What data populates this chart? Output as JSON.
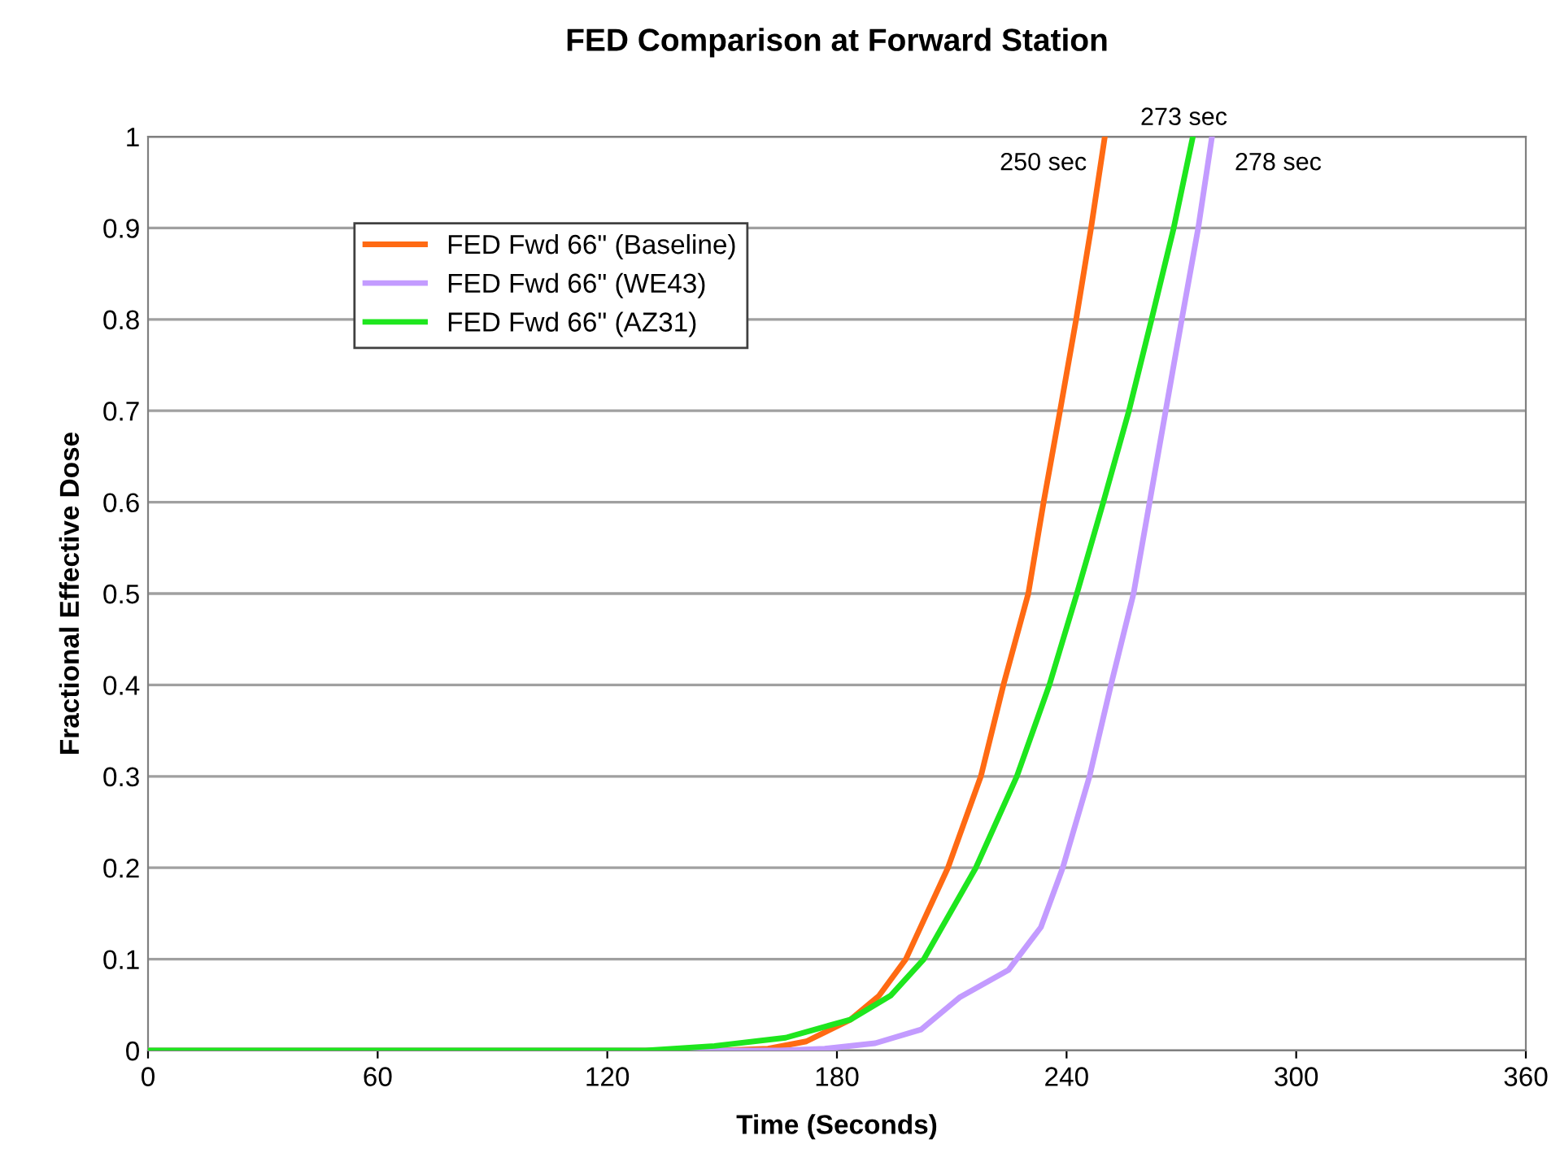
{
  "chart_data": {
    "type": "line",
    "title": "FED Comparison at Forward Station",
    "xlabel": "Time (Seconds)",
    "ylabel": "Fractional Effective Dose",
    "xlim": [
      0,
      360
    ],
    "xticks": [
      0,
      60,
      120,
      180,
      240,
      300,
      360
    ],
    "ylim": [
      0,
      1
    ],
    "yticks": [
      0,
      0.1,
      0.2,
      0.3,
      0.4,
      0.5,
      0.6,
      0.7,
      0.8,
      0.9,
      1
    ],
    "grid": "y",
    "legend": "top left",
    "marker": "none",
    "line_style": "solid",
    "series": [
      {
        "name": "FED Fwd 66\" (Baseline)",
        "color": "#ff6a13",
        "x": [
          0,
          150,
          162,
          172,
          183.6,
          191,
          198,
          209,
          217.6,
          223.5,
          230,
          234,
          238.3,
          242.5,
          246.4,
          250
        ],
        "values": [
          0,
          0,
          0.002,
          0.01,
          0.034,
          0.06,
          0.1,
          0.2,
          0.3,
          0.4,
          0.5,
          0.6,
          0.7,
          0.8,
          0.9,
          1
        ]
      },
      {
        "name": "FED Fwd 66\" (WE43)",
        "color": "#c39bff",
        "x": [
          0,
          165,
          176.8,
          190,
          202,
          212,
          224.8,
          233.3,
          239,
          246,
          251.6,
          257.5,
          261.7,
          265.9,
          270.1,
          274.4,
          278
        ],
        "values": [
          0,
          0,
          0.002,
          0.008,
          0.023,
          0.058,
          0.088,
          0.135,
          0.2,
          0.3,
          0.4,
          0.5,
          0.6,
          0.7,
          0.8,
          0.9,
          1
        ]
      },
      {
        "name": "FED Fwd 66\" (AZ31)",
        "color": "#1ee61e",
        "x": [
          0,
          130,
          148,
          166.6,
          183.6,
          194,
          202.7,
          216.3,
          227,
          235.5,
          242.7,
          249.6,
          256.3,
          262.2,
          268,
          273
        ],
        "values": [
          0,
          0,
          0.005,
          0.014,
          0.034,
          0.06,
          0.1,
          0.2,
          0.3,
          0.4,
          0.5,
          0.6,
          0.7,
          0.8,
          0.9,
          1
        ]
      }
    ],
    "annotations": [
      {
        "text": "250 sec",
        "x": 250,
        "y": 1
      },
      {
        "text": "273 sec",
        "x": 273,
        "y": 1
      },
      {
        "text": "278 sec",
        "x": 278,
        "y": 1
      }
    ]
  }
}
